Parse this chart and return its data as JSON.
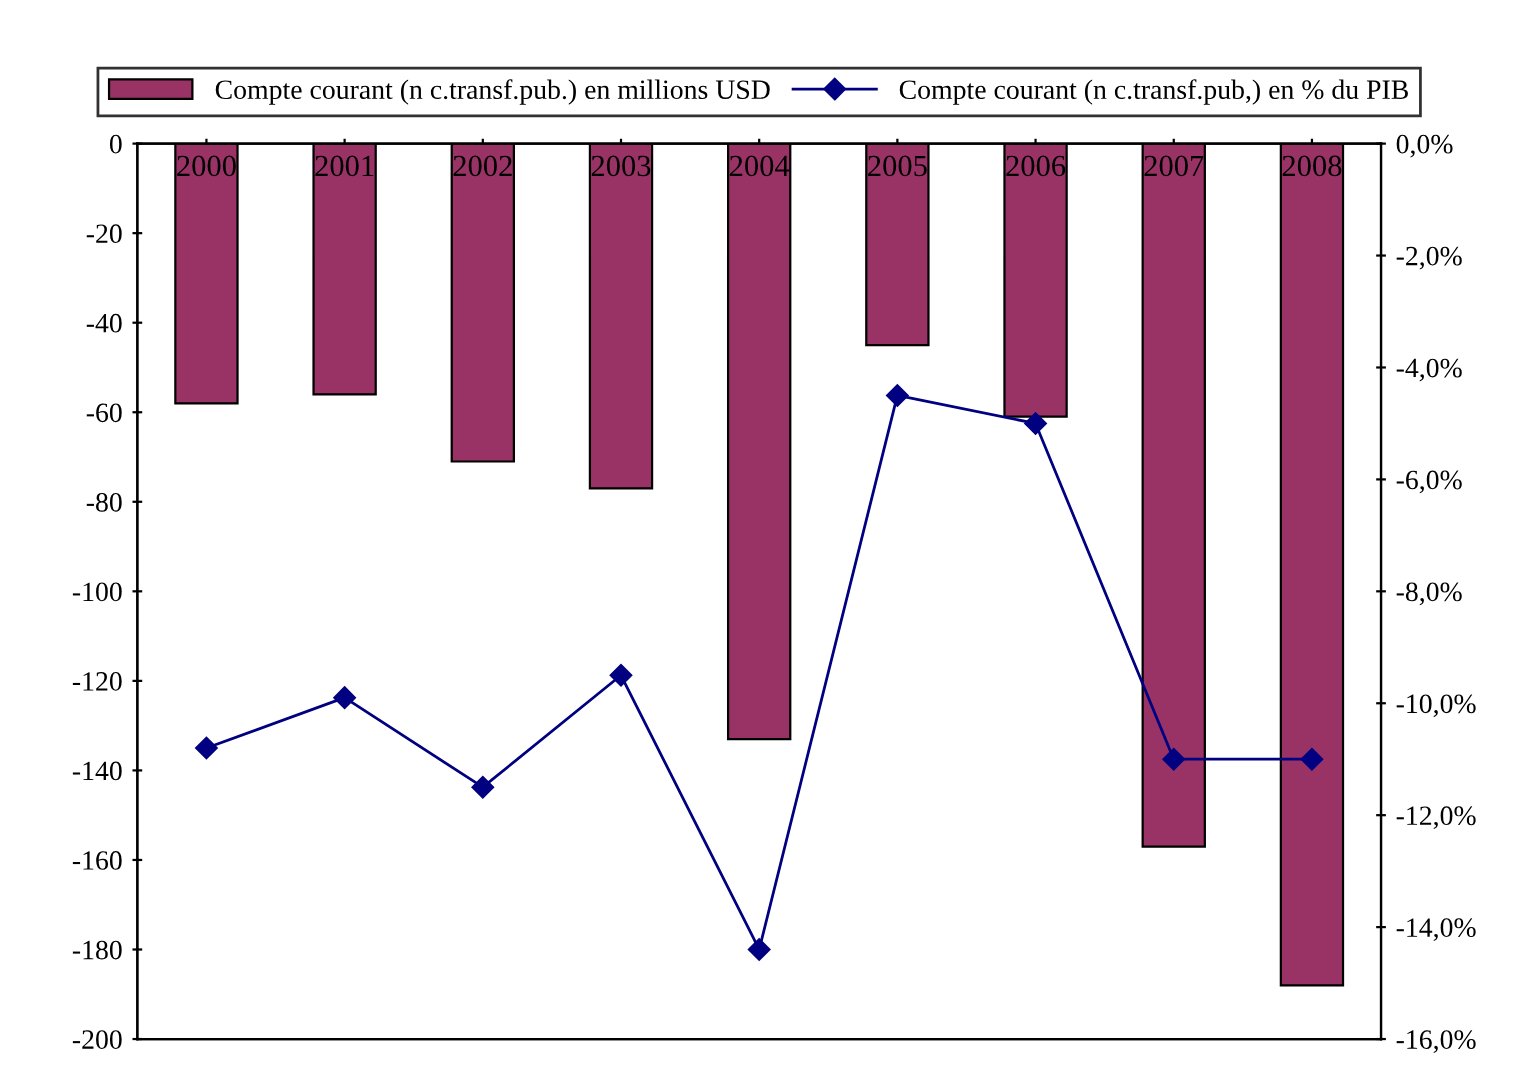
{
  "chart_data": {
    "type": "bar",
    "categories": [
      "2000",
      "2001",
      "2002",
      "2003",
      "2004",
      "2005",
      "2006",
      "2007",
      "2008"
    ],
    "series": [
      {
        "name": "Compte courant (n c.transf.pub.) en millions USD",
        "color": "#993366",
        "type": "bar",
        "values": [
          -58,
          -56,
          -71,
          -77,
          -133,
          -45,
          -61,
          -157,
          -188
        ]
      },
      {
        "name": "Compte courant (n c.transf.pub,) en % du PIB",
        "color": "#000080",
        "type": "line",
        "axis": "y2",
        "marker": "diamond",
        "values": [
          -10.8,
          -9.9,
          -11.5,
          -9.5,
          -14.4,
          -4.5,
          -5.0,
          -11.0,
          -11.0
        ]
      }
    ],
    "ylim": [
      -200,
      0
    ],
    "yticks": [
      -200,
      -180,
      -160,
      -140,
      -120,
      -100,
      -80,
      -60,
      -40,
      -20,
      0
    ],
    "y2lim": [
      -16,
      0
    ],
    "y2ticks": [
      {
        "value": -16,
        "label": "-16,0%"
      },
      {
        "value": -14,
        "label": "-14,0%"
      },
      {
        "value": -12,
        "label": "-12,0%"
      },
      {
        "value": -10,
        "label": "-10,0%"
      },
      {
        "value": -8,
        "label": "-8,0%"
      },
      {
        "value": -6,
        "label": "-6,0%"
      },
      {
        "value": -4,
        "label": "-4,0%"
      },
      {
        "value": -2,
        "label": "-2,0%"
      },
      {
        "value": 0,
        "label": "0,0%"
      }
    ],
    "legend": "top",
    "grid": false
  }
}
